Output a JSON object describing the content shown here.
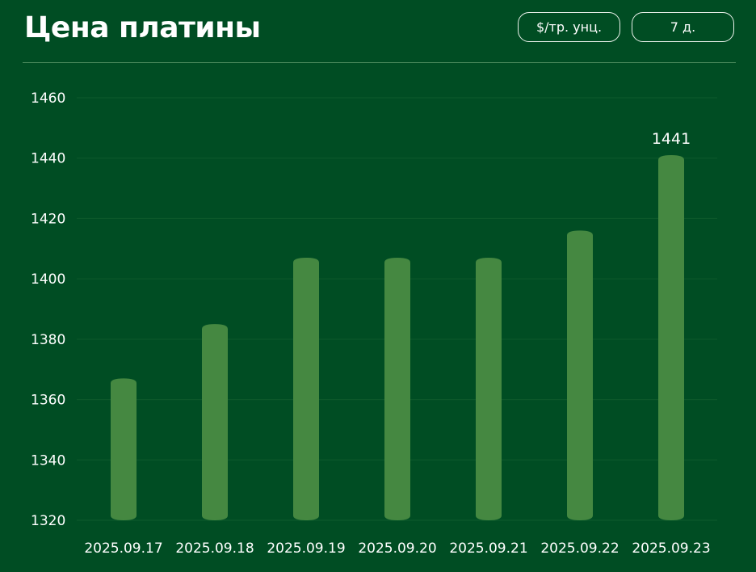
{
  "header": {
    "title": "Цена платины",
    "unit_button": "$/тр. унц.",
    "range_button": "7 д."
  },
  "colors": {
    "background": "#004d23",
    "bar": "#458841",
    "grid": "#0e5a2c"
  },
  "chart_data": {
    "type": "bar",
    "categories": [
      "2025.09.17",
      "2025.09.18",
      "2025.09.19",
      "2025.09.20",
      "2025.09.21",
      "2025.09.22",
      "2025.09.23"
    ],
    "values": [
      1367,
      1385,
      1407,
      1407,
      1407,
      1416,
      1441
    ],
    "ylim": [
      1320,
      1460
    ],
    "yticks": [
      1320,
      1340,
      1360,
      1380,
      1400,
      1420,
      1440,
      1460
    ],
    "grid": true,
    "data_labels": [
      {
        "index": 6,
        "text": "1441"
      }
    ]
  }
}
